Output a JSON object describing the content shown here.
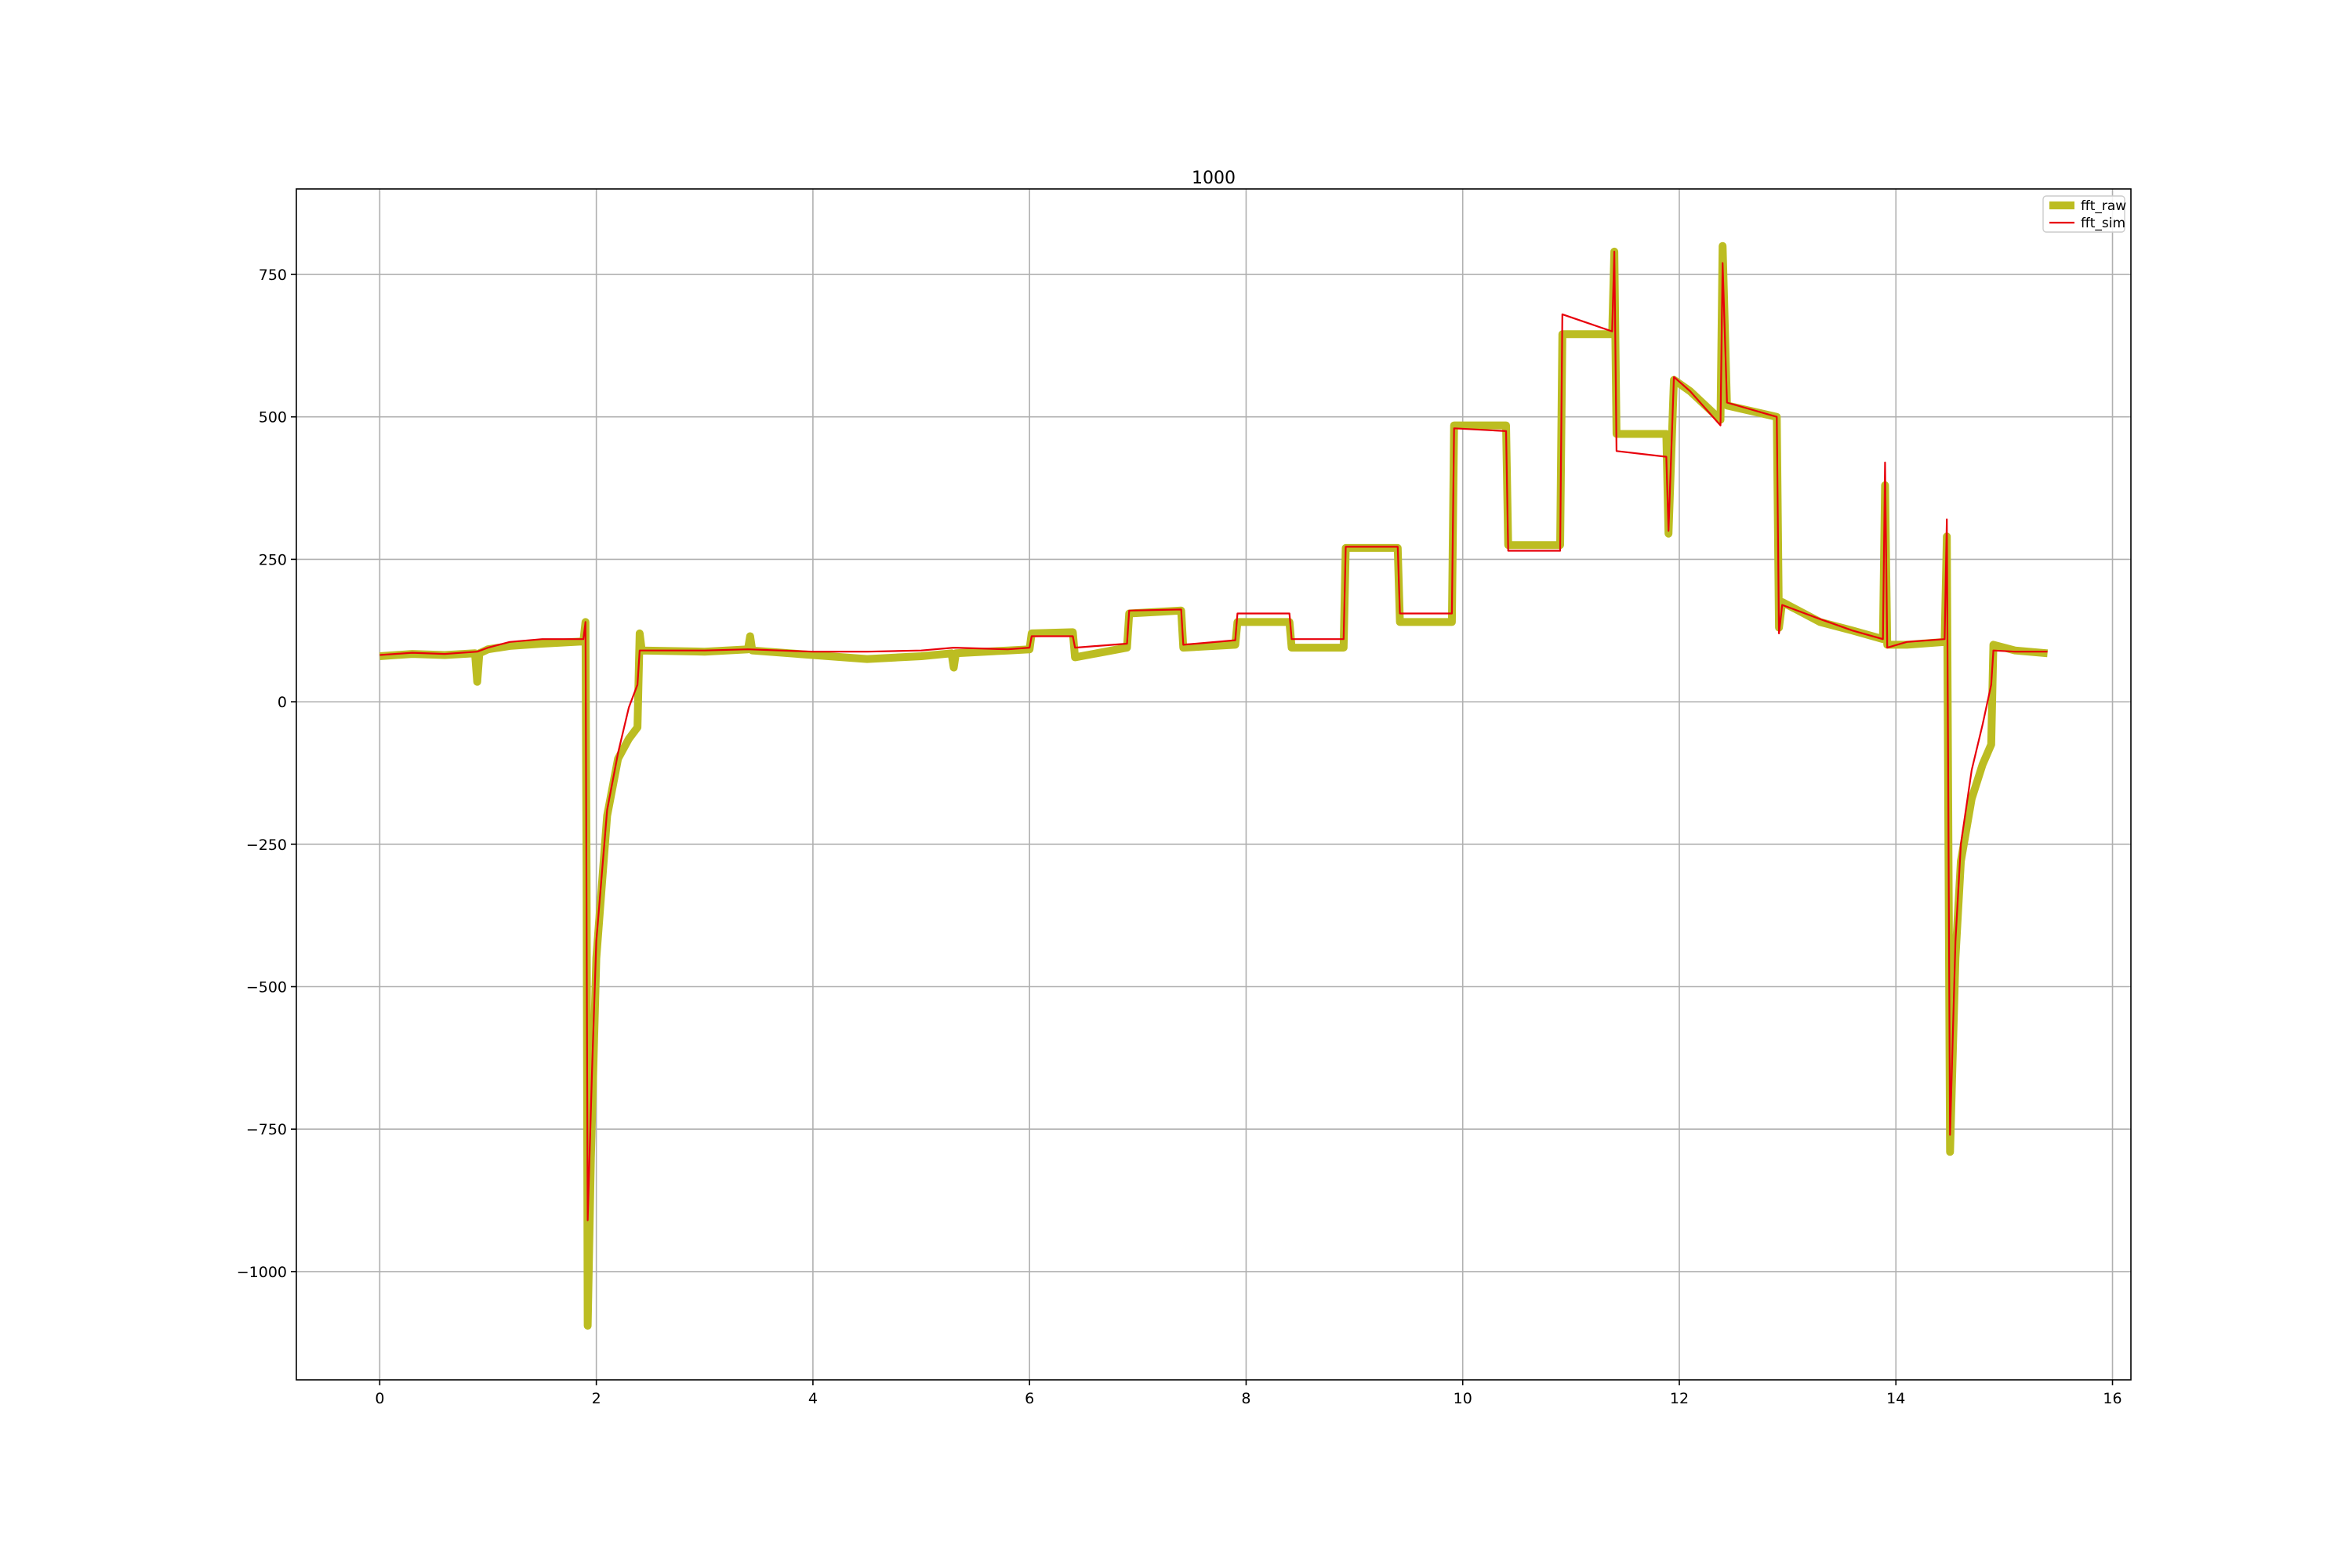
{
  "chart_data": {
    "type": "line",
    "title": "1000",
    "xlabel": "",
    "ylabel": "",
    "xlim": [
      -0.77,
      16.17
    ],
    "ylim": [
      -1190,
      900
    ],
    "xticks": [
      0,
      2,
      4,
      6,
      8,
      10,
      12,
      14,
      16
    ],
    "yticks": [
      -1000,
      -750,
      -500,
      -250,
      0,
      250,
      500,
      750
    ],
    "xtick_labels": [
      "0",
      "2",
      "4",
      "6",
      "8",
      "10",
      "12",
      "14",
      "16"
    ],
    "ytick_labels": [
      "−1000",
      "−750",
      "−500",
      "−250",
      "0",
      "250",
      "500",
      "750"
    ],
    "grid": true,
    "legend": "top-right",
    "series": [
      {
        "name": "fft_raw",
        "color": "#bcbd22",
        "points": [
          [
            0,
            80
          ],
          [
            0.3,
            84
          ],
          [
            0.6,
            82
          ],
          [
            0.88,
            85
          ],
          [
            0.9,
            35
          ],
          [
            0.92,
            85
          ],
          [
            1.0,
            92
          ],
          [
            1.2,
            98
          ],
          [
            1.5,
            102
          ],
          [
            1.88,
            106
          ],
          [
            1.9,
            140
          ],
          [
            1.91,
            -300
          ],
          [
            1.92,
            -1095
          ],
          [
            1.95,
            -800
          ],
          [
            2.0,
            -450
          ],
          [
            2.1,
            -200
          ],
          [
            2.2,
            -100
          ],
          [
            2.3,
            -65
          ],
          [
            2.38,
            -45
          ],
          [
            2.4,
            120
          ],
          [
            2.42,
            90
          ],
          [
            3.0,
            88
          ],
          [
            3.4,
            92
          ],
          [
            3.42,
            115
          ],
          [
            3.44,
            90
          ],
          [
            4.0,
            82
          ],
          [
            4.5,
            75
          ],
          [
            5.0,
            80
          ],
          [
            5.28,
            85
          ],
          [
            5.3,
            60
          ],
          [
            5.32,
            85
          ],
          [
            5.8,
            90
          ],
          [
            6.0,
            92
          ],
          [
            6.02,
            120
          ],
          [
            6.4,
            122
          ],
          [
            6.42,
            78
          ],
          [
            6.9,
            95
          ],
          [
            6.92,
            155
          ],
          [
            7.4,
            160
          ],
          [
            7.42,
            95
          ],
          [
            7.9,
            100
          ],
          [
            7.92,
            140
          ],
          [
            8.4,
            140
          ],
          [
            8.42,
            95
          ],
          [
            8.9,
            95
          ],
          [
            8.92,
            270
          ],
          [
            9.4,
            270
          ],
          [
            9.42,
            140
          ],
          [
            9.9,
            140
          ],
          [
            9.92,
            485
          ],
          [
            10.4,
            485
          ],
          [
            10.42,
            275
          ],
          [
            10.9,
            275
          ],
          [
            10.92,
            645
          ],
          [
            11.38,
            645
          ],
          [
            11.4,
            790
          ],
          [
            11.42,
            470
          ],
          [
            11.88,
            470
          ],
          [
            11.9,
            295
          ],
          [
            11.95,
            565
          ],
          [
            12.1,
            545
          ],
          [
            12.38,
            495
          ],
          [
            12.4,
            800
          ],
          [
            12.44,
            520
          ],
          [
            12.9,
            500
          ],
          [
            12.92,
            130
          ],
          [
            12.95,
            175
          ],
          [
            13.3,
            140
          ],
          [
            13.6,
            125
          ],
          [
            13.88,
            110
          ],
          [
            13.9,
            380
          ],
          [
            13.92,
            100
          ],
          [
            14.1,
            100
          ],
          [
            14.45,
            105
          ],
          [
            14.47,
            290
          ],
          [
            14.5,
            -790
          ],
          [
            14.55,
            -450
          ],
          [
            14.6,
            -280
          ],
          [
            14.7,
            -170
          ],
          [
            14.8,
            -110
          ],
          [
            14.88,
            -75
          ],
          [
            14.9,
            100
          ],
          [
            15.1,
            90
          ],
          [
            15.4,
            85
          ]
        ]
      },
      {
        "name": "fft_sim",
        "color": "#e8000b",
        "points": [
          [
            0,
            82
          ],
          [
            0.3,
            86
          ],
          [
            0.6,
            84
          ],
          [
            0.9,
            88
          ],
          [
            1.0,
            95
          ],
          [
            1.2,
            105
          ],
          [
            1.5,
            110
          ],
          [
            1.88,
            110
          ],
          [
            1.9,
            140
          ],
          [
            1.92,
            -910
          ],
          [
            1.96,
            -650
          ],
          [
            2.0,
            -420
          ],
          [
            2.1,
            -190
          ],
          [
            2.2,
            -90
          ],
          [
            2.3,
            -10
          ],
          [
            2.38,
            30
          ],
          [
            2.4,
            90
          ],
          [
            3.0,
            90
          ],
          [
            3.4,
            92
          ],
          [
            4.0,
            88
          ],
          [
            4.5,
            88
          ],
          [
            5.0,
            90
          ],
          [
            5.3,
            95
          ],
          [
            5.8,
            92
          ],
          [
            6.0,
            95
          ],
          [
            6.02,
            115
          ],
          [
            6.4,
            115
          ],
          [
            6.42,
            95
          ],
          [
            6.9,
            102
          ],
          [
            6.92,
            160
          ],
          [
            7.4,
            162
          ],
          [
            7.42,
            100
          ],
          [
            7.9,
            108
          ],
          [
            7.92,
            155
          ],
          [
            8.4,
            155
          ],
          [
            8.42,
            110
          ],
          [
            8.9,
            110
          ],
          [
            8.92,
            272
          ],
          [
            9.4,
            272
          ],
          [
            9.42,
            155
          ],
          [
            9.9,
            155
          ],
          [
            9.92,
            480
          ],
          [
            10.4,
            475
          ],
          [
            10.42,
            265
          ],
          [
            10.9,
            265
          ],
          [
            10.92,
            680
          ],
          [
            11.38,
            650
          ],
          [
            11.4,
            790
          ],
          [
            11.42,
            440
          ],
          [
            11.88,
            430
          ],
          [
            11.9,
            300
          ],
          [
            11.95,
            570
          ],
          [
            12.1,
            545
          ],
          [
            12.38,
            485
          ],
          [
            12.4,
            770
          ],
          [
            12.44,
            525
          ],
          [
            12.9,
            500
          ],
          [
            12.92,
            120
          ],
          [
            12.95,
            170
          ],
          [
            13.3,
            145
          ],
          [
            13.6,
            125
          ],
          [
            13.88,
            110
          ],
          [
            13.9,
            420
          ],
          [
            13.92,
            95
          ],
          [
            14.1,
            105
          ],
          [
            14.45,
            110
          ],
          [
            14.47,
            320
          ],
          [
            14.5,
            -760
          ],
          [
            14.55,
            -420
          ],
          [
            14.6,
            -250
          ],
          [
            14.7,
            -120
          ],
          [
            14.8,
            -40
          ],
          [
            14.88,
            30
          ],
          [
            14.9,
            90
          ],
          [
            15.1,
            88
          ],
          [
            15.4,
            88
          ]
        ]
      }
    ]
  }
}
